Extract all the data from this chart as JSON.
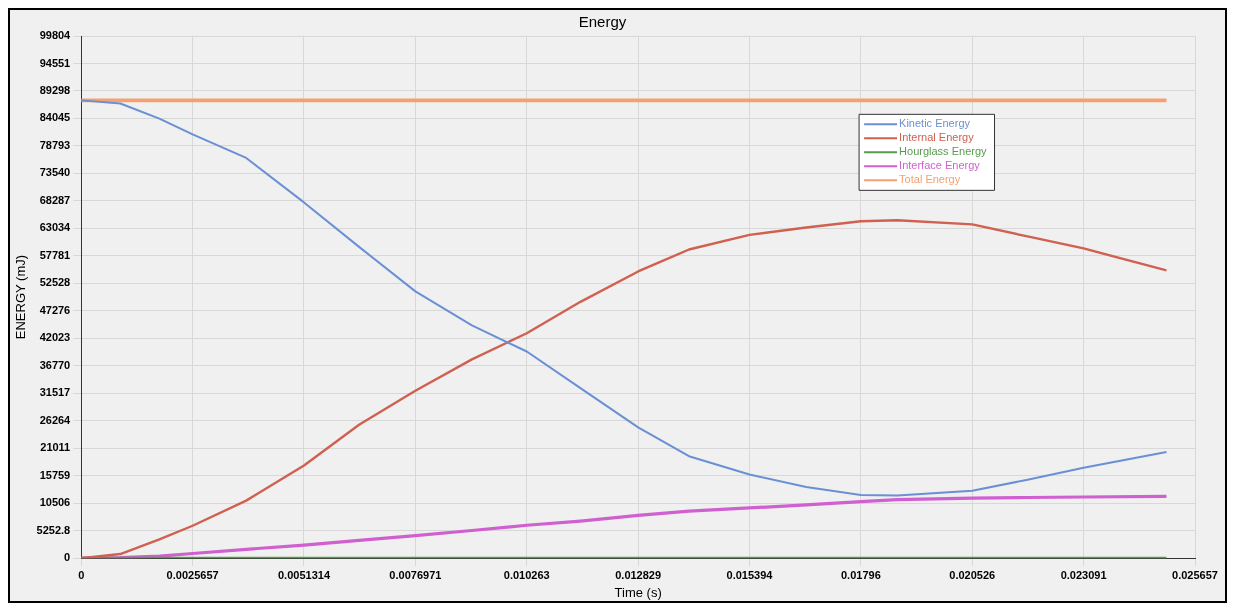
{
  "chart_data": {
    "type": "line",
    "title": "Energy",
    "xlabel": "Time (s)",
    "ylabel": "ENERGY (mJ)",
    "x": [
      0,
      0.0009,
      0.0018,
      0.0025657,
      0.0038,
      0.0051314,
      0.0064,
      0.0076971,
      0.009,
      0.010263,
      0.0115,
      0.012829,
      0.014,
      0.015394,
      0.0167,
      0.01796,
      0.0188,
      0.020526,
      0.0218,
      0.023091,
      0.025
    ],
    "series": [
      {
        "name": "Kinetic Energy",
        "color": "#6a8fd4",
        "values": [
          87500,
          86900,
          84000,
          81000,
          76500,
          68000,
          59500,
          51000,
          44500,
          39500,
          32500,
          25000,
          19500,
          16000,
          13600,
          12100,
          12000,
          12900,
          15000,
          17300,
          20300
        ]
      },
      {
        "name": "Internal Energy",
        "color": "#d06050",
        "values": [
          0,
          800,
          3600,
          6200,
          11000,
          17700,
          25500,
          32000,
          38000,
          43000,
          49000,
          54800,
          59000,
          61800,
          63200,
          64400,
          64600,
          63800,
          61500,
          59200,
          55000
        ]
      },
      {
        "name": "Hourglass Energy",
        "color": "#5a9a50",
        "values": [
          0,
          0,
          0,
          0,
          0,
          0,
          0,
          0,
          0,
          0,
          0,
          0,
          0,
          0,
          0,
          0,
          0,
          0,
          0,
          0,
          0
        ]
      },
      {
        "name": "Interface Energy",
        "color": "#d060d0",
        "values": [
          0,
          100,
          400,
          900,
          1700,
          2500,
          3400,
          4300,
          5300,
          6300,
          7100,
          8200,
          9000,
          9600,
          10200,
          10800,
          11200,
          11500,
          11600,
          11700,
          11800
        ]
      },
      {
        "name": "Total Energy",
        "color": "#f4a070",
        "values": [
          87500,
          87500,
          87500,
          87500,
          87500,
          87500,
          87500,
          87500,
          87500,
          87500,
          87500,
          87500,
          87500,
          87500,
          87500,
          87500,
          87500,
          87500,
          87500,
          87500,
          87500
        ]
      }
    ],
    "xlim": [
      0,
      0.025657
    ],
    "xticks": [
      0,
      0.0025657,
      0.0051314,
      0.0076971,
      0.010263,
      0.012829,
      0.015394,
      0.01796,
      0.020526,
      0.023091,
      0.025657
    ],
    "ylim": [
      0,
      99804
    ],
    "yticks": [
      0,
      5252.8,
      10506,
      15759,
      21011,
      26264,
      31517,
      36770,
      42023,
      47276,
      52528,
      57781,
      63034,
      68287,
      73540,
      78793,
      84045,
      89298,
      94551,
      99804
    ],
    "grid": true,
    "legend": "top right",
    "marker": "none",
    "line_style": "solid"
  }
}
